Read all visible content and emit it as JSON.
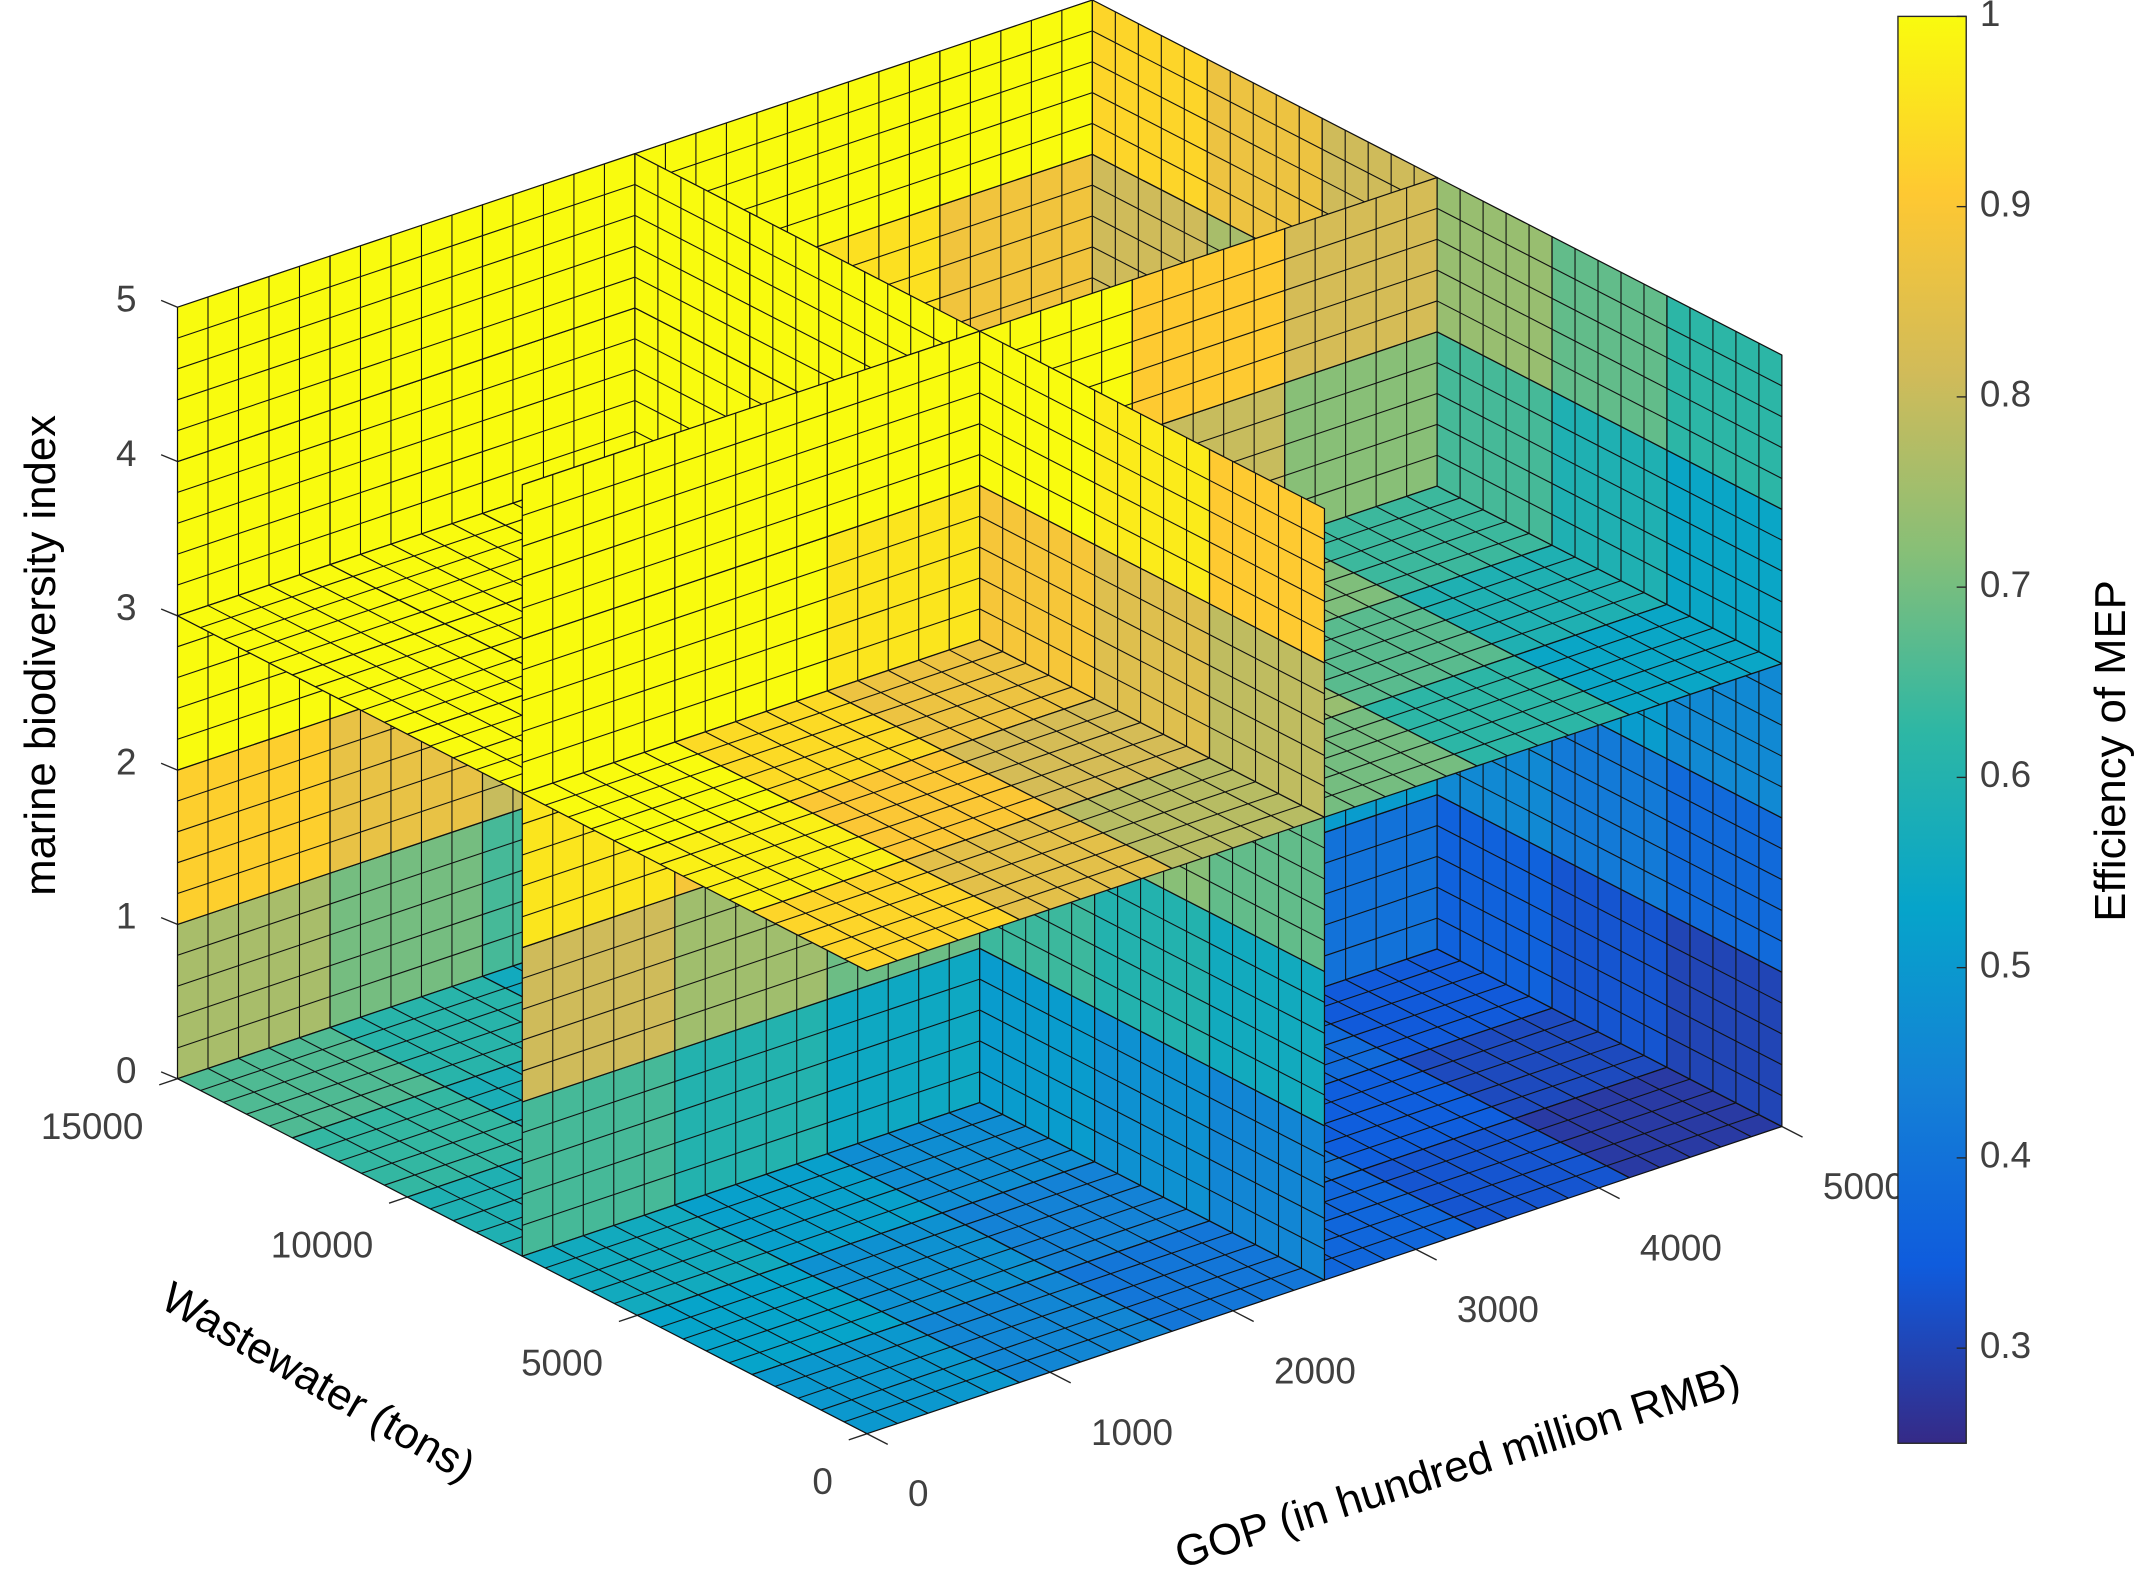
{
  "chart_data": {
    "type": "slice",
    "x_label": "GOP (in hundred million RMB)",
    "y_label": "Wastewater (tons)",
    "z_label": "marine biodiversity index",
    "colorbar_label": "Efficiency of MEP",
    "xlim": [
      0,
      5000
    ],
    "ylim": [
      0,
      15000
    ],
    "zlim": [
      0,
      5
    ],
    "xticks": [
      0,
      1000,
      2000,
      3000,
      4000,
      5000
    ],
    "yticks": [
      0,
      5000,
      10000,
      15000
    ],
    "zticks": [
      0,
      1,
      2,
      3,
      4,
      5
    ],
    "clim": [
      0.25,
      1
    ],
    "cticks": [
      0.3,
      0.4,
      0.5,
      0.6,
      0.7,
      0.8,
      0.9,
      1
    ],
    "colormap": [
      "#352a87",
      "#0f5cdd",
      "#1481d6",
      "#06a4ca",
      "#2eb7a4",
      "#87bf77",
      "#d1bb59",
      "#fec832",
      "#f9fb0e"
    ],
    "slices": [
      {
        "axis": "x",
        "at": 2500,
        "values": [
          [
            0.45,
            0.48,
            0.51,
            0.54,
            0.58,
            0.61
          ],
          [
            0.56,
            0.6,
            0.64,
            0.68,
            0.71,
            0.75
          ],
          [
            0.68,
            0.72,
            0.77,
            0.81,
            0.85,
            0.9
          ],
          [
            0.79,
            0.84,
            0.89,
            0.94,
            0.99,
            1
          ],
          [
            0.91,
            0.97,
            1,
            1,
            1,
            1
          ]
        ]
      },
      {
        "axis": "x",
        "at": 5000,
        "values": [
          [
            0.3,
            0.33,
            0.36,
            0.39,
            0.42,
            0.45
          ],
          [
            0.38,
            0.42,
            0.46,
            0.49,
            0.53,
            0.57
          ],
          [
            0.46,
            0.51,
            0.55,
            0.6,
            0.64,
            0.69
          ],
          [
            0.54,
            0.59,
            0.65,
            0.7,
            0.76,
            0.81
          ],
          [
            0.62,
            0.68,
            0.74,
            0.81,
            0.87,
            0.93
          ]
        ]
      },
      {
        "axis": "y",
        "at": 7500,
        "values": [
          [
            0.65,
            0.6,
            0.55,
            0.5,
            0.45,
            0.4
          ],
          [
            0.81,
            0.75,
            0.69,
            0.63,
            0.57,
            0.51
          ],
          [
            0.96,
            0.89,
            0.82,
            0.75,
            0.68,
            0.61
          ],
          [
            1,
            1,
            0.96,
            0.88,
            0.8,
            0.72
          ],
          [
            1,
            1,
            1,
            1,
            0.91,
            0.82
          ]
        ]
      },
      {
        "axis": "y",
        "at": 15000,
        "values": [
          [
            0.76,
            0.7,
            0.65,
            0.6,
            0.54,
            0.49
          ],
          [
            0.92,
            0.86,
            0.8,
            0.74,
            0.68,
            0.62
          ],
          [
            1,
            1,
            0.95,
            0.88,
            0.82,
            0.75
          ],
          [
            1,
            1,
            1,
            1,
            0.95,
            0.88
          ],
          [
            1,
            1,
            1,
            1,
            1,
            1
          ]
        ]
      },
      {
        "axis": "z",
        "at": 0,
        "values": [
          [
            0.5,
            0.45,
            0.41,
            0.37,
            0.33,
            0.28
          ],
          [
            0.53,
            0.48,
            0.44,
            0.4,
            0.35,
            0.31
          ],
          [
            0.56,
            0.52,
            0.47,
            0.43,
            0.38,
            0.34
          ],
          [
            0.59,
            0.55,
            0.5,
            0.45,
            0.41,
            0.36
          ],
          [
            0.63,
            0.58,
            0.53,
            0.48,
            0.43,
            0.39
          ],
          [
            0.66,
            0.61,
            0.56,
            0.51,
            0.46,
            0.41
          ]
        ]
      },
      {
        "axis": "z",
        "at": 3,
        "values": [
          [
            0.93,
            0.85,
            0.78,
            0.7,
            0.62,
            0.54
          ],
          [
            0.98,
            0.9,
            0.82,
            0.74,
            0.67,
            0.59
          ],
          [
            1,
            0.94,
            0.87,
            0.79,
            0.71,
            0.64
          ],
          [
            1,
            0.99,
            0.91,
            0.84,
            0.76,
            0.69
          ],
          [
            1,
            1,
            0.96,
            0.89,
            0.81,
            0.74
          ],
          [
            1,
            1,
            1,
            0.93,
            0.86,
            0.79
          ]
        ]
      }
    ]
  }
}
